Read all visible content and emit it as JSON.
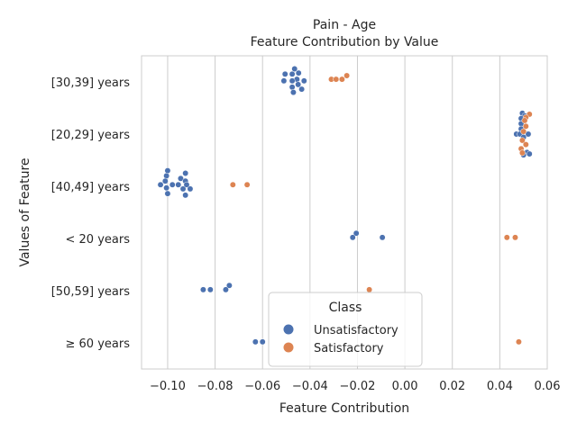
{
  "chart_data": {
    "type": "scatter",
    "title": "Pain - Age",
    "subtitle": "Feature Contribution by Value",
    "xlabel": "Feature Contribution",
    "ylabel": "Values of Feature",
    "xlim": [
      -0.111,
      0.06
    ],
    "xticks": [
      -0.1,
      -0.08,
      -0.06,
      -0.04,
      -0.02,
      0.0,
      0.02,
      0.04,
      0.06
    ],
    "xtick_labels": [
      "−0.10",
      "−0.08",
      "−0.06",
      "−0.04",
      "−0.02",
      "0.00",
      "0.02",
      "0.04",
      "0.06"
    ],
    "categories": [
      "[30,39] years",
      "[20,29] years",
      "[40,49] years",
      "< 20 years",
      "[50,59] years",
      "≥ 60 years"
    ],
    "grid": "vertical",
    "legend": {
      "title": "Class",
      "placement": "bottom-center",
      "entries": [
        {
          "name": "Unsatisfactory",
          "color": "#4c72b0"
        },
        {
          "name": "Satisfactory",
          "color": "#dd8452"
        }
      ]
    },
    "series": [
      {
        "name": "Unsatisfactory",
        "color": "#4c72b0",
        "points": [
          {
            "category": "[30,39] years",
            "x": -0.0465,
            "dy": -0.25
          },
          {
            "category": "[30,39] years",
            "x": -0.0448,
            "dy": -0.17
          },
          {
            "category": "[30,39] years",
            "x": -0.0475,
            "dy": -0.15
          },
          {
            "category": "[30,39] years",
            "x": -0.0505,
            "dy": -0.15
          },
          {
            "category": "[30,39] years",
            "x": -0.0455,
            "dy": -0.05
          },
          {
            "category": "[30,39] years",
            "x": -0.0475,
            "dy": -0.02
          },
          {
            "category": "[30,39] years",
            "x": -0.051,
            "dy": -0.02
          },
          {
            "category": "[30,39] years",
            "x": -0.0425,
            "dy": -0.02
          },
          {
            "category": "[30,39] years",
            "x": -0.045,
            "dy": 0.05
          },
          {
            "category": "[30,39] years",
            "x": -0.0475,
            "dy": 0.1
          },
          {
            "category": "[30,39] years",
            "x": -0.0435,
            "dy": 0.14
          },
          {
            "category": "[30,39] years",
            "x": -0.047,
            "dy": 0.2
          },
          {
            "category": "[20,29] years",
            "x": 0.0495,
            "dy": -0.4
          },
          {
            "category": "[20,29] years",
            "x": 0.0505,
            "dy": -0.35
          },
          {
            "category": "[20,29] years",
            "x": 0.049,
            "dy": -0.3
          },
          {
            "category": "[20,29] years",
            "x": 0.049,
            "dy": -0.2
          },
          {
            "category": "[20,29] years",
            "x": 0.049,
            "dy": -0.1
          },
          {
            "category": "[20,29] years",
            "x": 0.047,
            "dy": 0.0
          },
          {
            "category": "[20,29] years",
            "x": 0.0485,
            "dy": 0.0
          },
          {
            "category": "[20,29] years",
            "x": 0.052,
            "dy": 0.0
          },
          {
            "category": "[20,29] years",
            "x": 0.05,
            "dy": 0.06
          },
          {
            "category": "[20,29] years",
            "x": 0.0515,
            "dy": 0.35
          },
          {
            "category": "[20,29] years",
            "x": 0.0525,
            "dy": 0.38
          },
          {
            "category": "[20,29] years",
            "x": 0.05,
            "dy": 0.4
          },
          {
            "category": "[40,49] years",
            "x": -0.1,
            "dy": -0.3
          },
          {
            "category": "[40,49] years",
            "x": -0.0925,
            "dy": -0.25
          },
          {
            "category": "[40,49] years",
            "x": -0.1005,
            "dy": -0.2
          },
          {
            "category": "[40,49] years",
            "x": -0.0945,
            "dy": -0.15
          },
          {
            "category": "[40,49] years",
            "x": -0.0925,
            "dy": -0.1
          },
          {
            "category": "[40,49] years",
            "x": -0.101,
            "dy": -0.1
          },
          {
            "category": "[40,49] years",
            "x": -0.103,
            "dy": -0.03
          },
          {
            "category": "[40,49] years",
            "x": -0.098,
            "dy": -0.03
          },
          {
            "category": "[40,49] years",
            "x": -0.0955,
            "dy": -0.03
          },
          {
            "category": "[40,49] years",
            "x": -0.092,
            "dy": -0.03
          },
          {
            "category": "[40,49] years",
            "x": -0.1005,
            "dy": 0.03
          },
          {
            "category": "[40,49] years",
            "x": -0.0935,
            "dy": 0.05
          },
          {
            "category": "[40,49] years",
            "x": -0.0905,
            "dy": 0.05
          },
          {
            "category": "[40,49] years",
            "x": -0.1,
            "dy": 0.14
          },
          {
            "category": "[40,49] years",
            "x": -0.0925,
            "dy": 0.17
          },
          {
            "category": "< 20 years",
            "x": -0.0205,
            "dy": -0.1
          },
          {
            "category": "< 20 years",
            "x": -0.022,
            "dy": -0.02
          },
          {
            "category": "< 20 years",
            "x": -0.0095,
            "dy": -0.02
          },
          {
            "category": "[50,59] years",
            "x": -0.074,
            "dy": -0.1
          },
          {
            "category": "[50,59] years",
            "x": -0.085,
            "dy": -0.02
          },
          {
            "category": "[50,59] years",
            "x": -0.082,
            "dy": -0.02
          },
          {
            "category": "[50,59] years",
            "x": -0.0755,
            "dy": -0.02
          },
          {
            "category": "≥ 60 years",
            "x": -0.063,
            "dy": -0.02
          },
          {
            "category": "≥ 60 years",
            "x": -0.06,
            "dy": -0.02
          }
        ]
      },
      {
        "name": "Satisfactory",
        "color": "#dd8452",
        "points": [
          {
            "category": "[30,39] years",
            "x": -0.0245,
            "dy": -0.12
          },
          {
            "category": "[30,39] years",
            "x": -0.031,
            "dy": -0.05
          },
          {
            "category": "[30,39] years",
            "x": -0.029,
            "dy": -0.05
          },
          {
            "category": "[30,39] years",
            "x": -0.0265,
            "dy": -0.05
          },
          {
            "category": "[20,29] years",
            "x": 0.0525,
            "dy": -0.38
          },
          {
            "category": "[20,29] years",
            "x": 0.051,
            "dy": -0.32
          },
          {
            "category": "[20,29] years",
            "x": 0.0505,
            "dy": -0.26
          },
          {
            "category": "[20,29] years",
            "x": 0.051,
            "dy": -0.15
          },
          {
            "category": "[20,29] years",
            "x": 0.05,
            "dy": -0.05
          },
          {
            "category": "[20,29] years",
            "x": 0.0495,
            "dy": 0.12
          },
          {
            "category": "[20,29] years",
            "x": 0.051,
            "dy": 0.2
          },
          {
            "category": "[20,29] years",
            "x": 0.049,
            "dy": 0.28
          },
          {
            "category": "[20,29] years",
            "x": 0.0495,
            "dy": 0.36
          },
          {
            "category": "[40,49] years",
            "x": -0.0725,
            "dy": -0.03
          },
          {
            "category": "[40,49] years",
            "x": -0.0665,
            "dy": -0.03
          },
          {
            "category": "< 20 years",
            "x": 0.043,
            "dy": -0.02
          },
          {
            "category": "< 20 years",
            "x": 0.0465,
            "dy": -0.02
          },
          {
            "category": "[50,59] years",
            "x": -0.015,
            "dy": -0.02
          },
          {
            "category": "≥ 60 years",
            "x": 0.048,
            "dy": -0.02
          }
        ]
      }
    ]
  }
}
